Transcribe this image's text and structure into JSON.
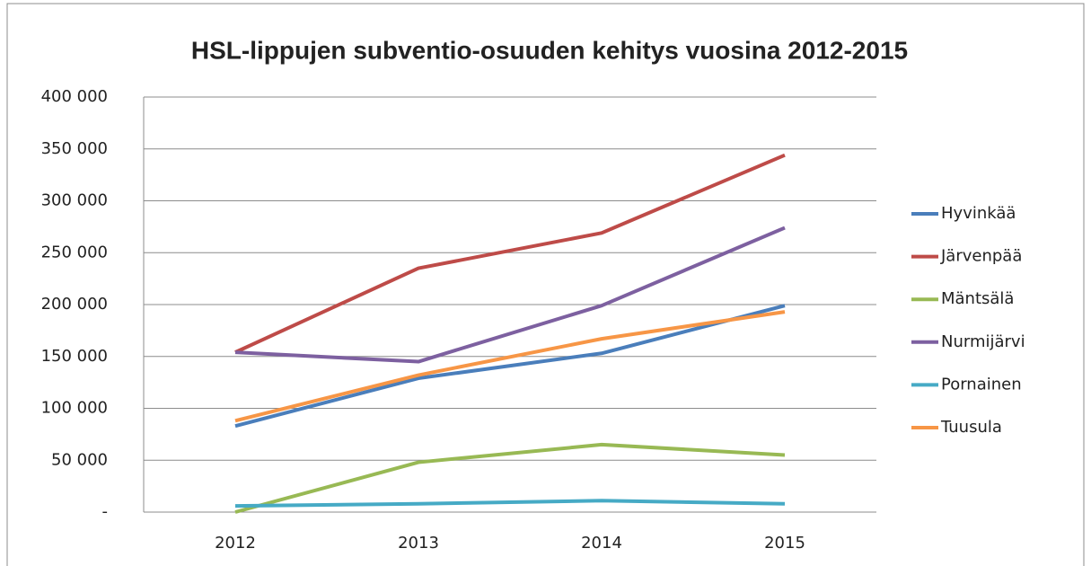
{
  "chart_data": {
    "type": "line",
    "title": "HSL-lippujen subventio-osuuden  kehitys vuosina 2012-2015",
    "categories": [
      "2012",
      "2013",
      "2014",
      "2015"
    ],
    "series": [
      {
        "name": "Hyvinkää",
        "color": "#4a7ebb",
        "values": [
          83000,
          129000,
          153000,
          199000
        ]
      },
      {
        "name": "Järvenpää",
        "color": "#be4b48",
        "values": [
          154000,
          235000,
          269000,
          344000
        ]
      },
      {
        "name": "Mäntsälä",
        "color": "#98b954",
        "values": [
          0,
          48000,
          65000,
          55000
        ]
      },
      {
        "name": "Nurmijärvi",
        "color": "#7d60a0",
        "values": [
          154000,
          145000,
          199000,
          274000
        ]
      },
      {
        "name": "Pornainen",
        "color": "#46aac5",
        "values": [
          6000,
          8000,
          11000,
          8000
        ]
      },
      {
        "name": "Tuusula",
        "color": "#f79646",
        "values": [
          88000,
          132000,
          167000,
          193000
        ]
      }
    ],
    "ylim": [
      0,
      400000
    ],
    "yticks": [
      {
        "value": 0,
        "label": "-"
      },
      {
        "value": 50000,
        "label": "50 000"
      },
      {
        "value": 100000,
        "label": "100 000"
      },
      {
        "value": 150000,
        "label": "150 000"
      },
      {
        "value": 200000,
        "label": "200 000"
      },
      {
        "value": 250000,
        "label": "250 000"
      },
      {
        "value": 300000,
        "label": "300 000"
      },
      {
        "value": 350000,
        "label": "350 000"
      },
      {
        "value": 400000,
        "label": "400 000"
      }
    ],
    "grid": true,
    "legend": "right"
  }
}
